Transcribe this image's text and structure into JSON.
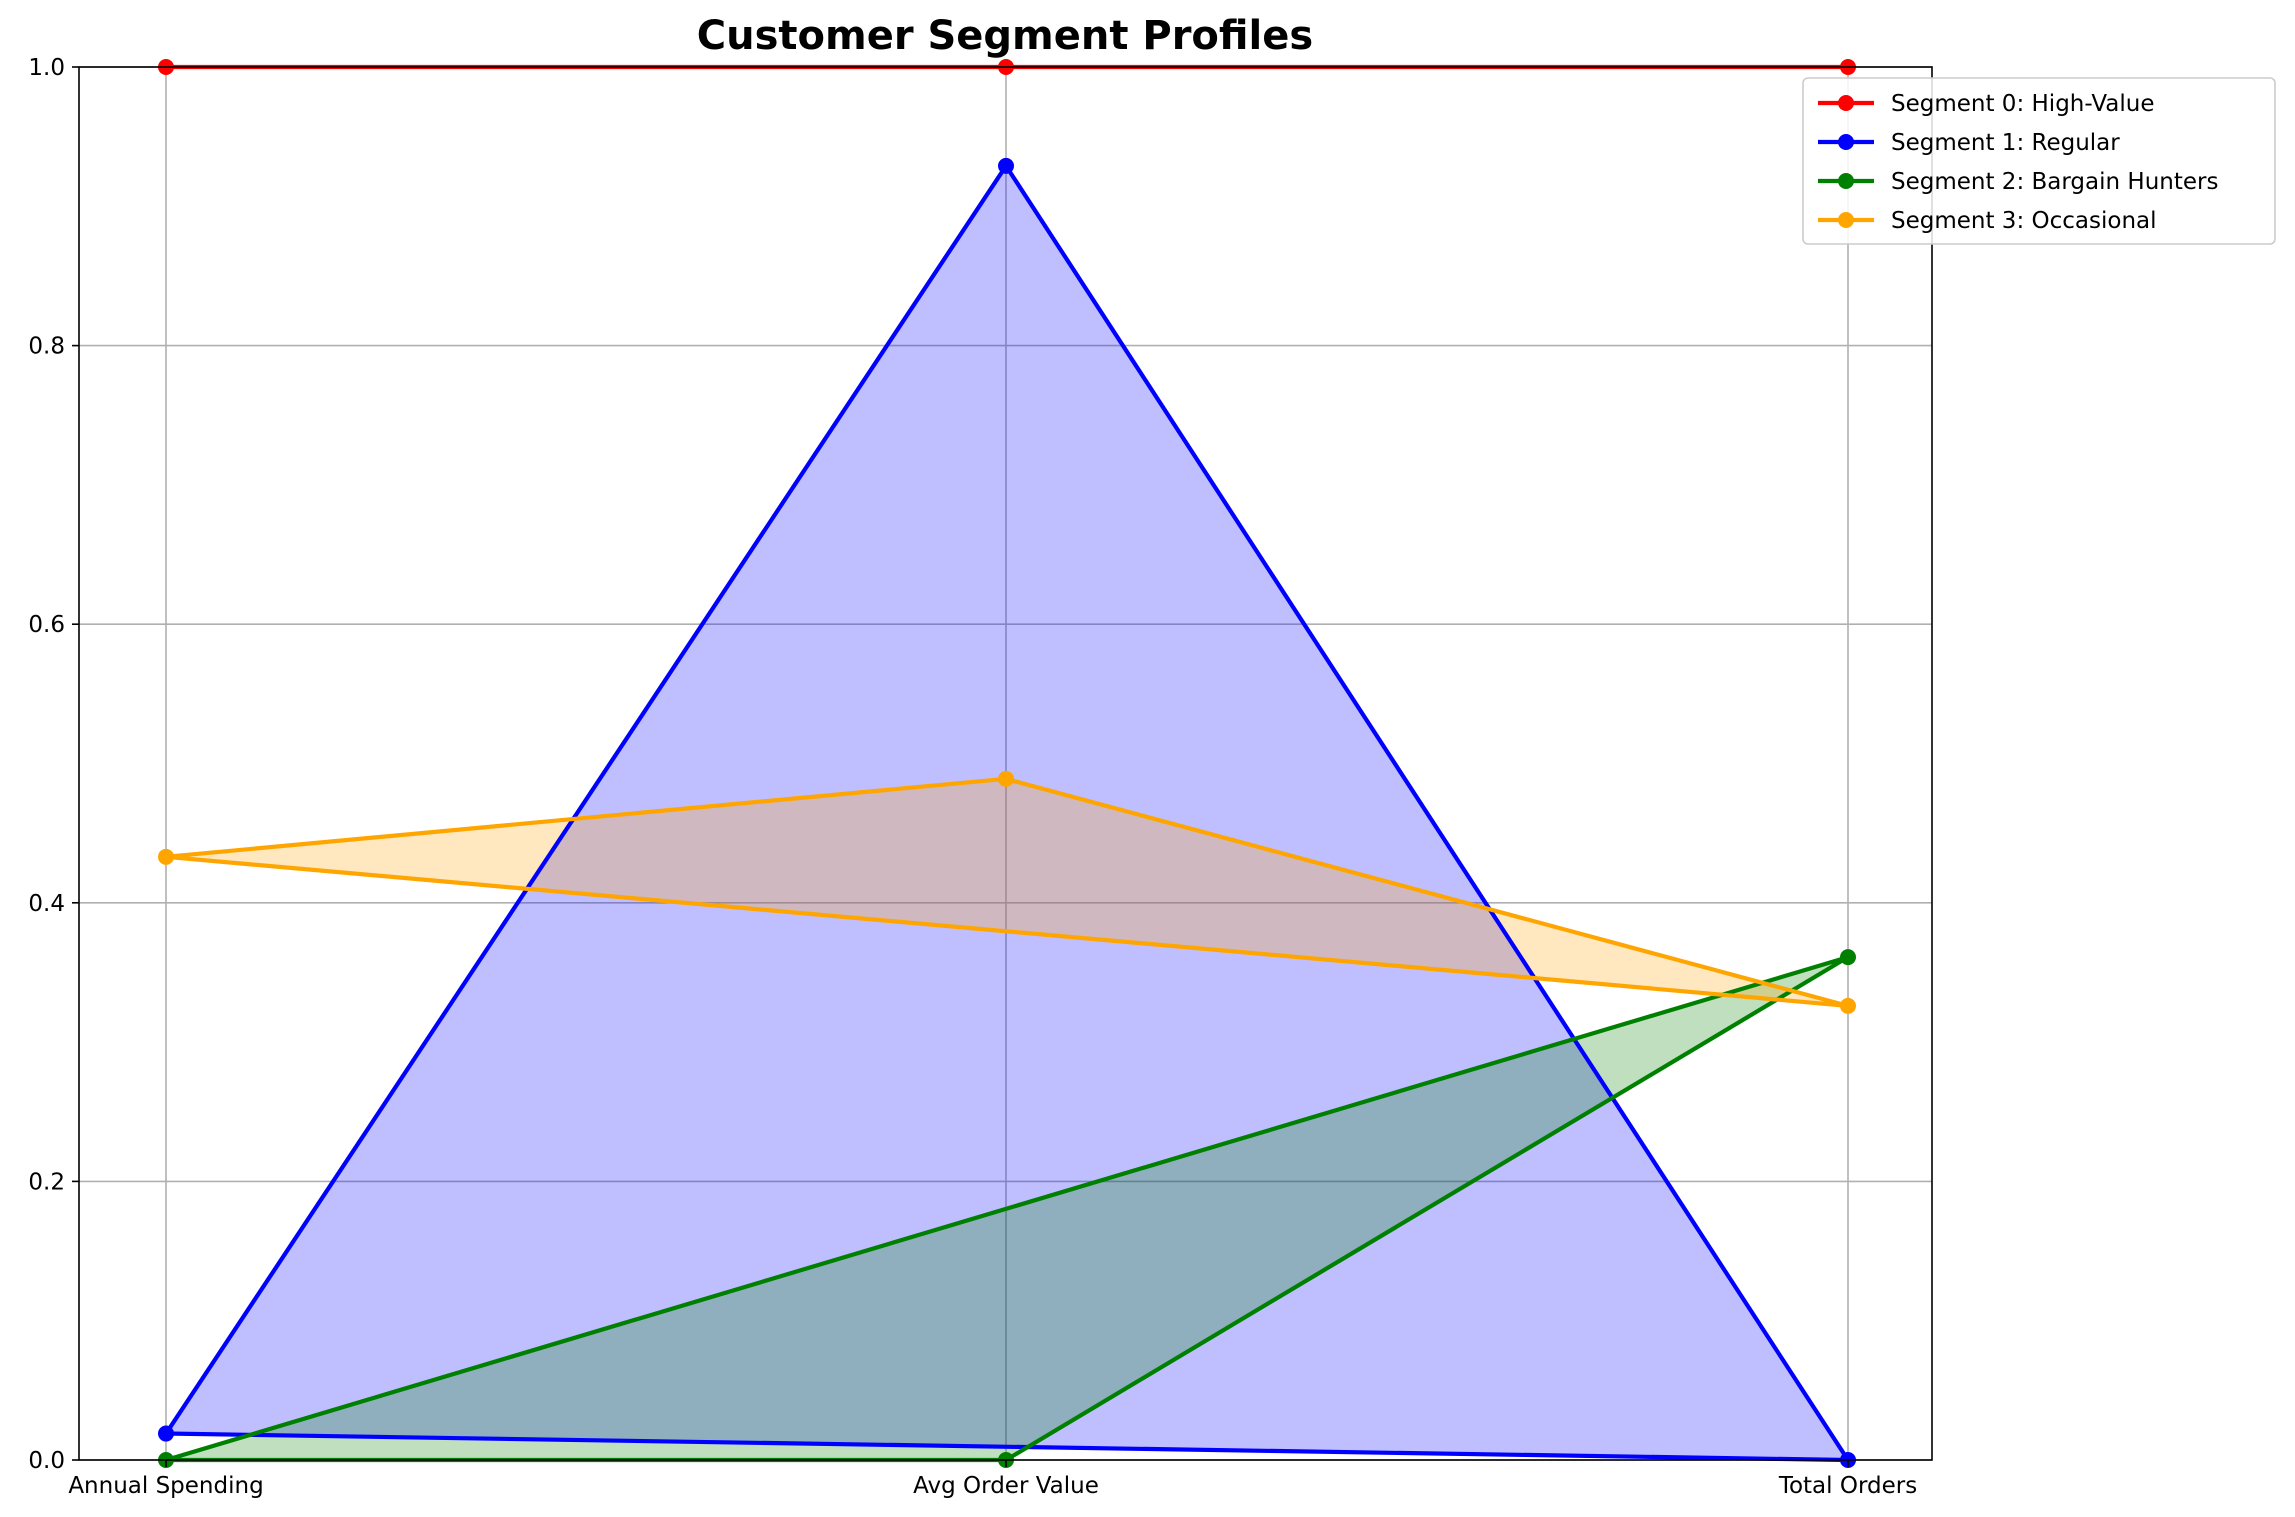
{
  "chart_data": {
    "type": "line",
    "title": "Customer Segment Profiles",
    "categories": [
      "Annual Spending",
      "Avg Order Value",
      "Total Orders"
    ],
    "ylim": [
      0,
      1
    ],
    "yticks": [
      "0.0",
      "0.2",
      "0.4",
      "0.6",
      "0.8",
      "1.0"
    ],
    "grid": true,
    "legend_position": "top-right",
    "filled": true,
    "closed_polygons": true,
    "series": [
      {
        "name": "Segment 0: High-Value",
        "color": "#ff0000",
        "values": [
          1.0,
          1.0,
          1.0
        ]
      },
      {
        "name": "Segment 1: Regular",
        "color": "#0000ff",
        "values": [
          0.019,
          0.929,
          0.0
        ]
      },
      {
        "name": "Segment 2: Bargain Hunters",
        "color": "#008000",
        "values": [
          0.0,
          0.0,
          0.361
        ]
      },
      {
        "name": "Segment 3: Occasional",
        "color": "#ffa500",
        "values": [
          0.433,
          0.489,
          0.326
        ]
      }
    ]
  }
}
